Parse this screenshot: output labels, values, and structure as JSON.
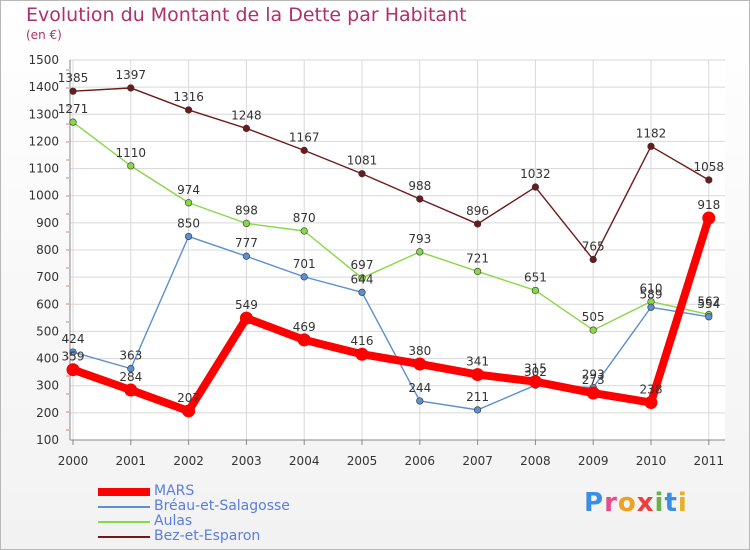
{
  "title": "Evolution du Montant de la Dette par Habitant",
  "subtitle": "(en €)",
  "logo_text": "Proxiti",
  "chart_data": {
    "type": "line",
    "title": "Evolution du Montant de la Dette par Habitant",
    "subtitle": "(en €)",
    "xlabel": "",
    "ylabel": "",
    "x": [
      "2000",
      "2001",
      "2002",
      "2003",
      "2004",
      "2005",
      "2006",
      "2007",
      "2008",
      "2009",
      "2010",
      "2011"
    ],
    "ylim": [
      100,
      1500
    ],
    "yticks": [
      100,
      200,
      300,
      400,
      500,
      600,
      700,
      800,
      900,
      1000,
      1100,
      1200,
      1300,
      1400,
      1500
    ],
    "grid": true,
    "legend_position": "bottom-left",
    "series": [
      {
        "name": "MARS",
        "color": "#ff0000",
        "values": [
          359,
          284,
          207,
          549,
          469,
          416,
          380,
          341,
          315,
          273,
          238,
          918
        ]
      },
      {
        "name": "Bréau-et-Salagosse",
        "color": "#5a8fd0",
        "values": [
          424,
          363,
          850,
          777,
          701,
          644,
          244,
          211,
          302,
          293,
          589,
          554
        ]
      },
      {
        "name": "Aulas",
        "color": "#88d848",
        "values": [
          1271,
          1110,
          974,
          898,
          870,
          697,
          793,
          721,
          651,
          505,
          610,
          562
        ]
      },
      {
        "name": "Bez-et-Esparon",
        "color": "#6e1a1a",
        "values": [
          1385,
          1397,
          1316,
          1248,
          1167,
          1081,
          988,
          896,
          1032,
          765,
          1182,
          1058
        ]
      }
    ],
    "data_labels": [
      {
        "series": 0,
        "labels": [
          "359",
          "284",
          "207",
          "549",
          "469",
          "416",
          "380",
          "341",
          "315",
          "273",
          "238",
          "918"
        ]
      },
      {
        "series": 1,
        "labels": [
          "424",
          "363",
          "850",
          "777",
          "701",
          "644",
          "244",
          "211",
          "302",
          "293",
          "589",
          "554"
        ]
      },
      {
        "series": 2,
        "labels": [
          "1271",
          "1110",
          "974",
          "898",
          "870",
          "697",
          "793",
          "721",
          "651",
          "505",
          "610",
          "562"
        ]
      },
      {
        "series": 3,
        "labels": [
          "1385",
          "1397",
          "1316",
          "1248",
          "1167",
          "1081",
          "988",
          "896",
          "1032",
          "765",
          "1182",
          "1058"
        ]
      }
    ]
  },
  "logo_colors": [
    "#3a8ee6",
    "#e84b8a",
    "#f0a020",
    "#ef3d3d",
    "#6ab04c",
    "#3a8ee6",
    "#e8b020"
  ]
}
